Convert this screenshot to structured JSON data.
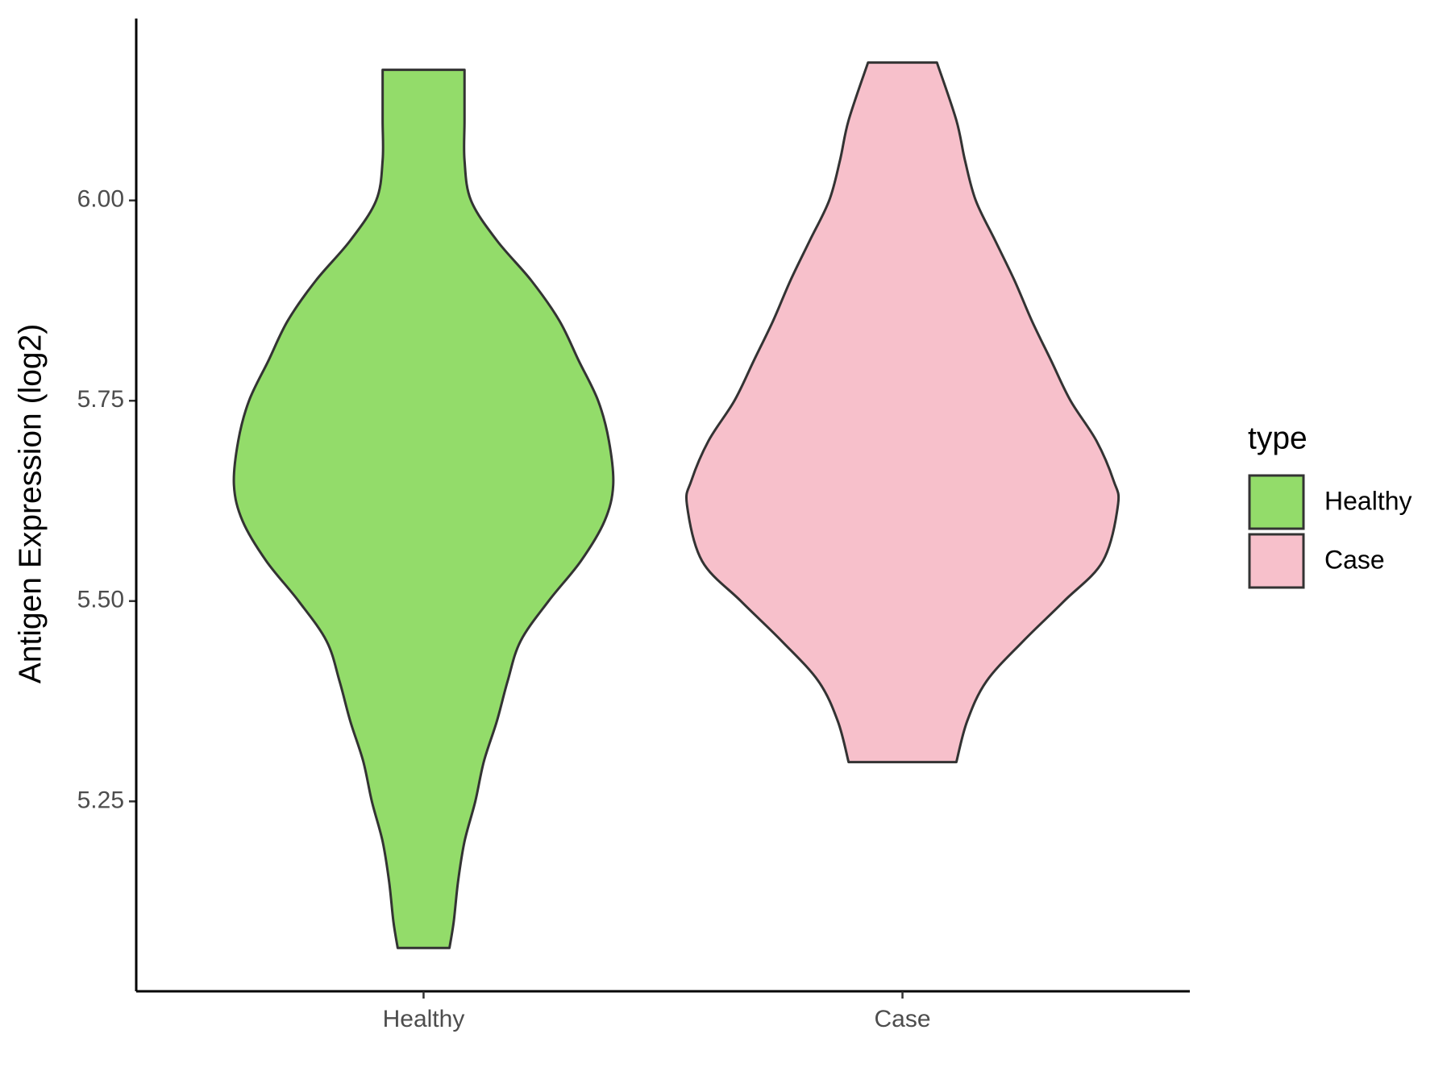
{
  "chart_data": {
    "type": "violin",
    "y_label": "Antigen Expression (log2)",
    "legend_title": "type",
    "categories": [
      "Healthy",
      "Case"
    ],
    "series": [
      {
        "name": "Healthy",
        "color": "#93dc6a",
        "y": [
          6.163,
          6.1,
          6.05,
          6.0,
          5.95,
          5.9,
          5.85,
          5.8,
          5.75,
          5.7,
          5.645,
          5.6,
          5.55,
          5.5,
          5.45,
          5.4,
          5.35,
          5.3,
          5.25,
          5.2,
          5.15,
          5.1,
          5.067
        ],
        "density": [
          0.19,
          0.19,
          0.19,
          0.22,
          0.34,
          0.5,
          0.63,
          0.72,
          0.81,
          0.86,
          0.88,
          0.84,
          0.73,
          0.58,
          0.45,
          0.39,
          0.34,
          0.28,
          0.24,
          0.19,
          0.16,
          0.14,
          0.12
        ]
      },
      {
        "name": "Case",
        "color": "#f7c0cb",
        "y": [
          6.172,
          6.1,
          6.05,
          6.0,
          5.95,
          5.9,
          5.85,
          5.8,
          5.75,
          5.7,
          5.65,
          5.62,
          5.55,
          5.5,
          5.45,
          5.4,
          5.35,
          5.299
        ],
        "density": [
          0.16,
          0.25,
          0.29,
          0.34,
          0.43,
          0.52,
          0.6,
          0.69,
          0.78,
          0.9,
          0.98,
          1,
          0.93,
          0.75,
          0.56,
          0.39,
          0.3,
          0.25
        ]
      }
    ],
    "ylim": [
      5.013,
      6.227
    ],
    "yticks": [
      5.25,
      {
        "value": 5.5,
        "label": "5.50"
      },
      5.75,
      {
        "value": 6,
        "label": "6.00"
      }
    ]
  }
}
